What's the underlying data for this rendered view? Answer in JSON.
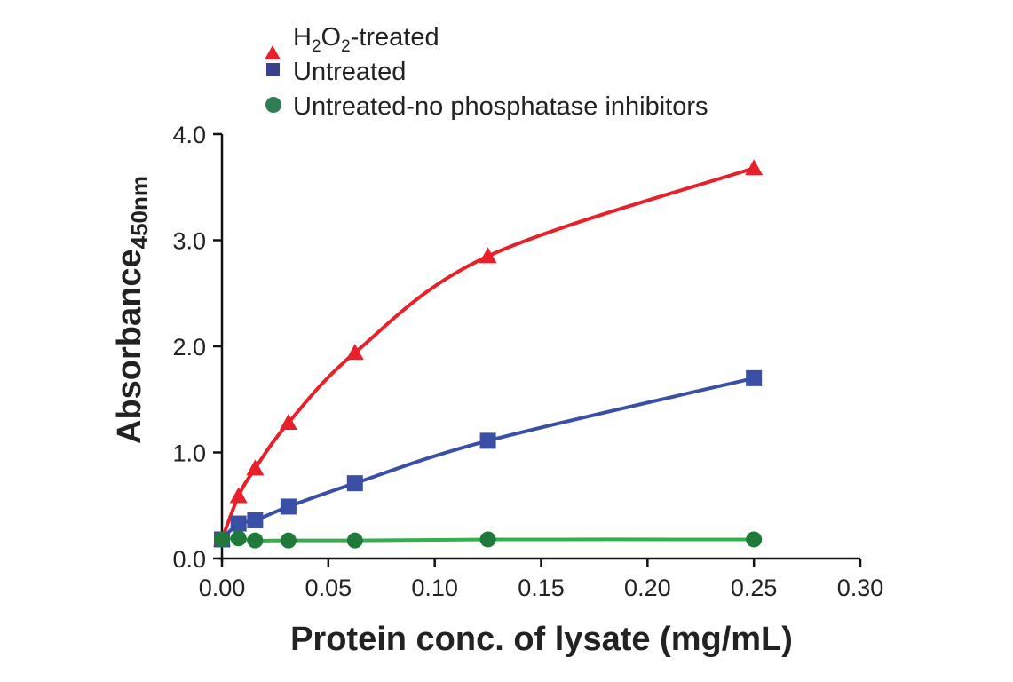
{
  "chart_data": {
    "type": "line",
    "title": "",
    "xlabel": "Protein conc. of lysate (mg/mL)",
    "ylabel": "Absorbance",
    "ylabel_sub": "450nm",
    "xlim": [
      0,
      0.3
    ],
    "ylim": [
      0,
      4.0
    ],
    "xticks": [
      "0.00",
      "0.05",
      "0.10",
      "0.15",
      "0.20",
      "0.25",
      "0.30"
    ],
    "yticks": [
      "0.0",
      "1.0",
      "2.0",
      "3.0",
      "4.0"
    ],
    "grid": false,
    "legend_position": "top",
    "x": [
      0,
      0.0078,
      0.0156,
      0.03125,
      0.0625,
      0.125,
      0.25
    ],
    "series": [
      {
        "name": "H2O2-treated",
        "legend_main": "H",
        "legend_sub1": "2",
        "legend_mid": "O",
        "legend_sub2": "2",
        "legend_tail": "-treated",
        "marker": "triangle",
        "color": "#e8202a",
        "line_color": "#e8202a",
        "values": [
          0.18,
          0.59,
          0.85,
          1.28,
          1.94,
          2.85,
          3.68
        ]
      },
      {
        "name": "Untreated",
        "marker": "square",
        "color": "#3a4fa6",
        "line_color": "#3a4fa6",
        "values": [
          0.18,
          0.33,
          0.36,
          0.49,
          0.71,
          1.11,
          1.7
        ]
      },
      {
        "name": "Untreated-no phosphatase inhibitors",
        "marker": "circle",
        "color": "#1f7a3a",
        "line_color": "#33b04a",
        "values": [
          0.18,
          0.19,
          0.17,
          0.17,
          0.17,
          0.18,
          0.18
        ]
      }
    ]
  }
}
